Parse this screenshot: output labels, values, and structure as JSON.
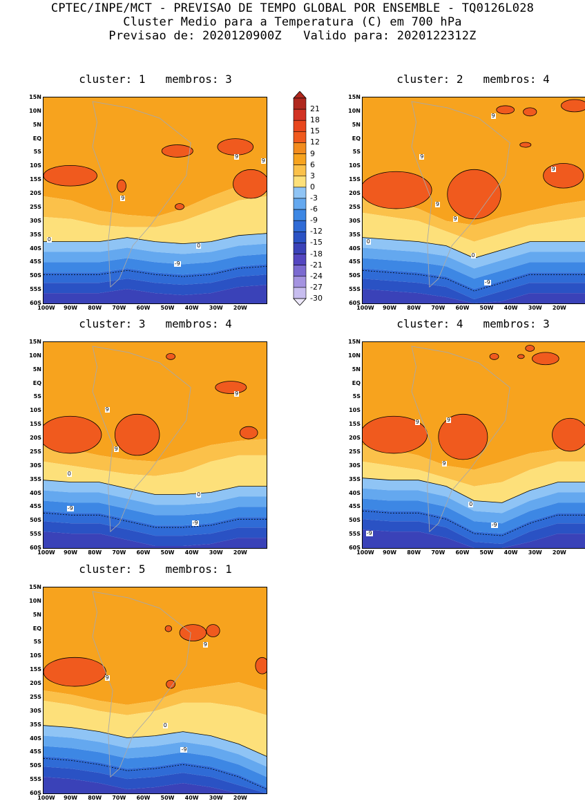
{
  "header": {
    "line1": "CPTEC/INPE/MCT - PREVISAO DE TEMPO GLOBAL POR ENSEMBLE - TQ0126L028",
    "line2": "Cluster Medio para a Temperatura (C) em 700 hPa",
    "line3": "Previsao de: 2020120900Z   Valido para: 2020122312Z"
  },
  "lat_labels": [
    "15N",
    "10N",
    "5N",
    "EQ",
    "5S",
    "10S",
    "15S",
    "20S",
    "25S",
    "30S",
    "35S",
    "40S",
    "45S",
    "50S",
    "55S",
    "60S"
  ],
  "lon_labels": [
    "100W",
    "90W",
    "80W",
    "70W",
    "60W",
    "50W",
    "40W",
    "30W",
    "20W"
  ],
  "colorbar": {
    "labels": [
      "21",
      "18",
      "15",
      "12",
      "9",
      "6",
      "3",
      "0",
      "-3",
      "-6",
      "-9",
      "-12",
      "-15",
      "-18",
      "-21",
      "-24",
      "-27",
      "-30"
    ],
    "colors": [
      "#b0281e",
      "#d23223",
      "#e8461d",
      "#f05a1e",
      "#f28c1e",
      "#f7a31e",
      "#fbc14a",
      "#fde07a",
      "#8fc4f5",
      "#64a8ef",
      "#3d87e4",
      "#2f6bd6",
      "#2a52c4",
      "#3a42b8",
      "#5446c0",
      "#7b6ad0",
      "#a493e0",
      "#c7bdef"
    ]
  },
  "panels": [
    {
      "title": "cluster: 1   membros: 3",
      "labels": [
        "9",
        "9",
        "9",
        "0",
        "0",
        "-9"
      ]
    },
    {
      "title": "cluster: 2   membros: 4",
      "labels": [
        "9",
        "9",
        "9",
        "9",
        "9",
        "0",
        "0",
        "-9"
      ]
    },
    {
      "title": "cluster: 3   membros: 4",
      "labels": [
        "9",
        "9",
        "9",
        "0",
        "0",
        "-9",
        "-9"
      ]
    },
    {
      "title": "cluster: 4   membros: 3",
      "labels": [
        "9",
        "9",
        "9",
        "0",
        "-9",
        "-9"
      ]
    },
    {
      "title": "cluster: 5   membros: 1",
      "labels": [
        "9",
        "9",
        "0",
        "-9"
      ]
    }
  ]
}
